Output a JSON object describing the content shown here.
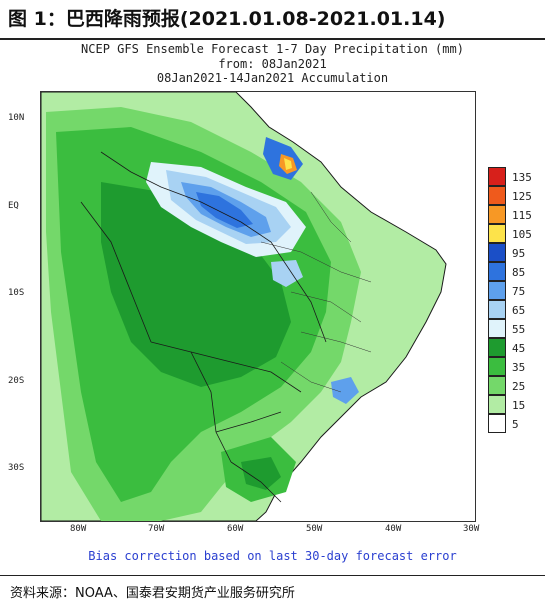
{
  "figure_title": "图 1：巴西降雨预报(2021.01.08-2021.01.14)",
  "map": {
    "title_line1": "NCEP GFS Ensemble Forecast 1-7 Day Precipitation (mm)",
    "title_line2": "from: 08Jan2021",
    "title_line3": "08Jan2021-14Jan2021 Accumulation",
    "lat_labels": [
      "10N",
      "EQ",
      "10S",
      "20S",
      "30S"
    ],
    "lon_labels": [
      "80W",
      "70W",
      "60W",
      "50W",
      "40W",
      "30W"
    ],
    "footnote": "Bias correction based on last 30-day forecast error"
  },
  "legend": {
    "levels": [
      {
        "label": "135",
        "color": "#d7201b"
      },
      {
        "label": "125",
        "color": "#ef5a1c"
      },
      {
        "label": "115",
        "color": "#f79825"
      },
      {
        "label": "105",
        "color": "#fde34a"
      },
      {
        "label": "95",
        "color": "#1b4fc7"
      },
      {
        "label": "85",
        "color": "#2e73de"
      },
      {
        "label": "75",
        "color": "#5ea0ec"
      },
      {
        "label": "65",
        "color": "#a8d2f3"
      },
      {
        "label": "55",
        "color": "#e0f3fb"
      },
      {
        "label": "45",
        "color": "#1e9b2f"
      },
      {
        "label": "35",
        "color": "#3bbd3f"
      },
      {
        "label": "25",
        "color": "#74d86a"
      },
      {
        "label": "15",
        "color": "#b2eca4"
      },
      {
        "label": "5",
        "color": "#ffffff"
      }
    ]
  },
  "source": "资料来源：NOAA、国泰君安期货产业服务研究所"
}
